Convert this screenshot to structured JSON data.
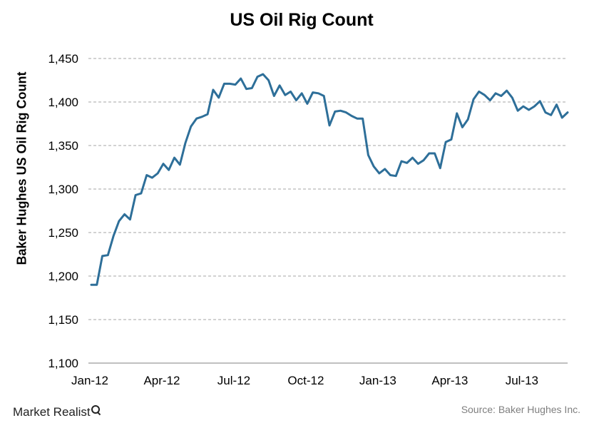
{
  "chart_data": {
    "type": "line",
    "title": "US Oil Rig Count",
    "xlabel": "",
    "ylabel": "Baker Hughes US Oil Rig Count",
    "ylim": [
      1100,
      1450
    ],
    "yticks": [
      "1,100",
      "1,150",
      "1,200",
      "1,250",
      "1,300",
      "1,350",
      "1,400",
      "1,450"
    ],
    "xticks": [
      "Jan-12",
      "Apr-12",
      "Jul-12",
      "Oct-12",
      "Jan-13",
      "Apr-13",
      "Jul-13"
    ],
    "grid": "horizontal dashed",
    "line_color": "#2e6f99",
    "series": [
      {
        "values": [
          1190,
          1190,
          1223,
          1224,
          1246,
          1263,
          1271,
          1265,
          1293,
          1295,
          1316,
          1313,
          1318,
          1329,
          1322,
          1336,
          1328,
          1353,
          1372,
          1381,
          1383,
          1386,
          1414,
          1405,
          1421,
          1421,
          1420,
          1427,
          1415,
          1416,
          1429,
          1432,
          1425,
          1407,
          1419,
          1408,
          1412,
          1402,
          1410,
          1398,
          1411,
          1410,
          1407,
          1373,
          1389,
          1390,
          1388,
          1384,
          1381,
          1381,
          1339,
          1326,
          1318,
          1323,
          1316,
          1315,
          1332,
          1330,
          1336,
          1329,
          1333,
          1341,
          1341,
          1324,
          1354,
          1357,
          1387,
          1371,
          1380,
          1403,
          1412,
          1408,
          1402,
          1410,
          1407,
          1413,
          1405,
          1390,
          1395,
          1391,
          1395,
          1401,
          1388,
          1385,
          1397,
          1382,
          1388
        ]
      }
    ]
  },
  "logo_text": "Market Realist",
  "source": "Source: Baker Hughes Inc."
}
